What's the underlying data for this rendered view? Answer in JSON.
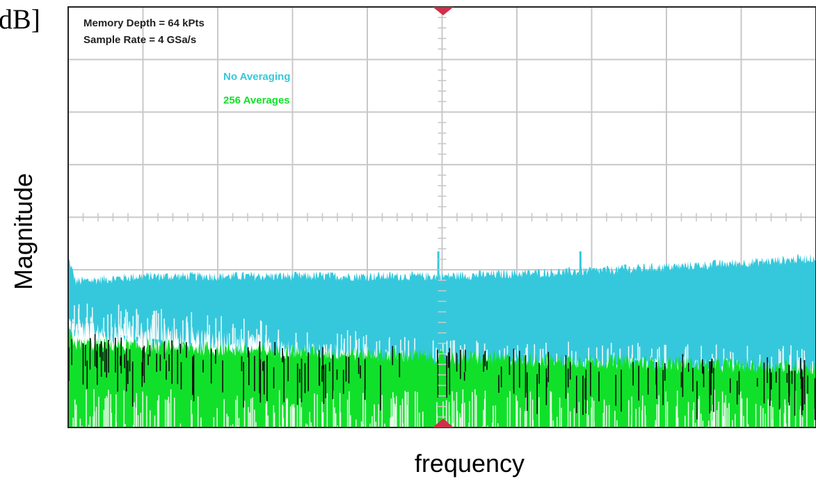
{
  "page": {
    "unit_label": "dB]",
    "ylabel": "Magnitude",
    "xlabel": "frequency"
  },
  "annotations": {
    "memory_depth": "Memory Depth = 64 kPts",
    "sample_rate": "Sample Rate = 4 GSa/s"
  },
  "colors": {
    "background": "#ffffff",
    "grid": "#c8c8c8",
    "frame": "#222222",
    "marker": "#d0304a",
    "no_averaging": "#35c8dc",
    "averaged": "#11e02a",
    "spikes": "#0a0a0a"
  },
  "chart_data": {
    "type": "area",
    "title": "",
    "xlabel": "frequency",
    "ylabel": "Magnitude",
    "unit": "dB]",
    "grid": true,
    "grid_divisions": {
      "x": 10,
      "y": 8
    },
    "y_range_div": [
      0,
      8
    ],
    "x_range_div": [
      0,
      10
    ],
    "legend": "top-left",
    "series": [
      {
        "name": "No Averaging",
        "color": "#35c8dc",
        "noise_floor_top_div": [
          [
            0.0,
            3.2
          ],
          [
            0.1,
            2.75
          ],
          [
            1.0,
            2.85
          ],
          [
            3.0,
            2.85
          ],
          [
            5.0,
            2.85
          ],
          [
            7.0,
            2.95
          ],
          [
            9.0,
            3.1
          ],
          [
            10.0,
            3.2
          ]
        ],
        "noise_floor_bottom_div": [
          [
            0.0,
            2.0
          ],
          [
            5.0,
            1.2
          ],
          [
            10.0,
            1.1
          ]
        ],
        "spurs_div": [
          [
            4.95,
            3.35
          ],
          [
            6.85,
            3.35
          ],
          [
            7.45,
            3.1
          ]
        ]
      },
      {
        "name": "256 Averages",
        "color": "#11e02a",
        "noise_floor_top_div": [
          [
            0.0,
            1.8
          ],
          [
            0.1,
            1.55
          ],
          [
            5.0,
            1.3
          ],
          [
            10.0,
            1.1
          ]
        ],
        "noise_floor_bottom_div": [
          [
            0.0,
            0.0
          ],
          [
            10.0,
            0.0
          ]
        ]
      }
    ]
  }
}
